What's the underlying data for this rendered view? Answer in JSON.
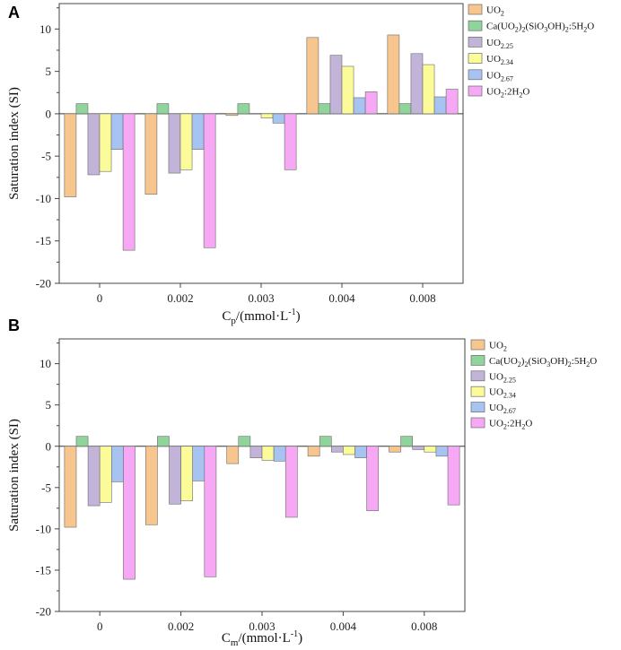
{
  "chart_data": [
    {
      "panel": "A",
      "type": "bar",
      "categories": [
        "0",
        "0.002",
        "0.003",
        "0.004",
        "0.008"
      ],
      "xlabel": "Cp/(mmol·L-1)",
      "xlabel_parts": {
        "base": "C",
        "sub": "p",
        "unit_open": "/(mmol·L",
        "sup": "-1",
        "unit_close": ")"
      },
      "ylabel": "Saturation index (SI)",
      "ylim": [
        -20,
        13
      ],
      "yticks": [
        -20,
        -15,
        -10,
        -5,
        0,
        5,
        10
      ],
      "legend_position": "top-right",
      "series": [
        {
          "name": "UO2",
          "color": "#f7c58e",
          "values": [
            -9.8,
            -9.5,
            -0.2,
            9.0,
            9.3
          ]
        },
        {
          "name": "Ca(UO2)2(SiO3OH)2:5H2O",
          "color": "#8fd49a",
          "values": [
            1.2,
            1.2,
            1.2,
            1.2,
            1.2
          ]
        },
        {
          "name": "UO2.25",
          "color": "#c2b3d8",
          "values": [
            -7.2,
            -7.0,
            0.05,
            6.9,
            7.1
          ]
        },
        {
          "name": "UO2.34",
          "color": "#fbfb9a",
          "values": [
            -6.8,
            -6.6,
            -0.5,
            5.6,
            5.8
          ]
        },
        {
          "name": "UO2.67",
          "color": "#a7c3f2",
          "values": [
            -4.2,
            -4.2,
            -1.1,
            1.9,
            2.0
          ]
        },
        {
          "name": "UO2:2H2O",
          "color": "#f6a8f4",
          "values": [
            -16.1,
            -15.8,
            -6.6,
            2.6,
            2.9
          ]
        }
      ]
    },
    {
      "panel": "B",
      "type": "bar",
      "categories": [
        "0",
        "0.002",
        "0.003",
        "0.004",
        "0.008"
      ],
      "xlabel": "Cm/(mmol·L-1)",
      "xlabel_parts": {
        "base": "C",
        "sub": "m",
        "unit_open": "/(mmol·L",
        "sup": "-1",
        "unit_close": ")"
      },
      "ylabel": "Saturation index (SI)",
      "ylim": [
        -20,
        13
      ],
      "yticks": [
        -20,
        -15,
        -10,
        -5,
        0,
        5,
        10
      ],
      "legend_position": "top-right",
      "series": [
        {
          "name": "UO2",
          "color": "#f7c58e",
          "values": [
            -9.8,
            -9.5,
            -2.1,
            -1.2,
            -0.7
          ]
        },
        {
          "name": "Ca(UO2)2(SiO3OH)2:5H2O",
          "color": "#8fd49a",
          "values": [
            1.2,
            1.2,
            1.2,
            1.2,
            1.2
          ]
        },
        {
          "name": "UO2.25",
          "color": "#c2b3d8",
          "values": [
            -7.2,
            -7.0,
            -1.4,
            -0.7,
            -0.4
          ]
        },
        {
          "name": "UO2.34",
          "color": "#fbfb9a",
          "values": [
            -6.8,
            -6.6,
            -1.7,
            -1.0,
            -0.7
          ]
        },
        {
          "name": "UO2.67",
          "color": "#a7c3f2",
          "values": [
            -4.3,
            -4.2,
            -1.8,
            -1.4,
            -1.2
          ]
        },
        {
          "name": "UO2:2H2O",
          "color": "#f6a8f4",
          "values": [
            -16.1,
            -15.8,
            -8.6,
            -7.8,
            -7.1
          ]
        }
      ]
    }
  ],
  "legend_labels": [
    {
      "base": "UO",
      "sub": "2",
      "rest": ""
    },
    {
      "base": "Ca(UO",
      "sub": "2",
      "rest": ")",
      "sub2": "2",
      "rest2": "(SiO",
      "sub3": "3",
      "rest3": "OH)",
      "sub4": "2",
      "rest4": ":5H",
      "sub5": "2",
      "rest5": "O"
    },
    {
      "base": "UO",
      "sub": "2.25",
      "rest": ""
    },
    {
      "base": "UO",
      "sub": "2.34",
      "rest": ""
    },
    {
      "base": "UO",
      "sub": "2.67",
      "rest": ""
    },
    {
      "base": "UO",
      "sub": "2",
      "rest": ":2H",
      "sub2": "2",
      "rest2": "O"
    }
  ]
}
